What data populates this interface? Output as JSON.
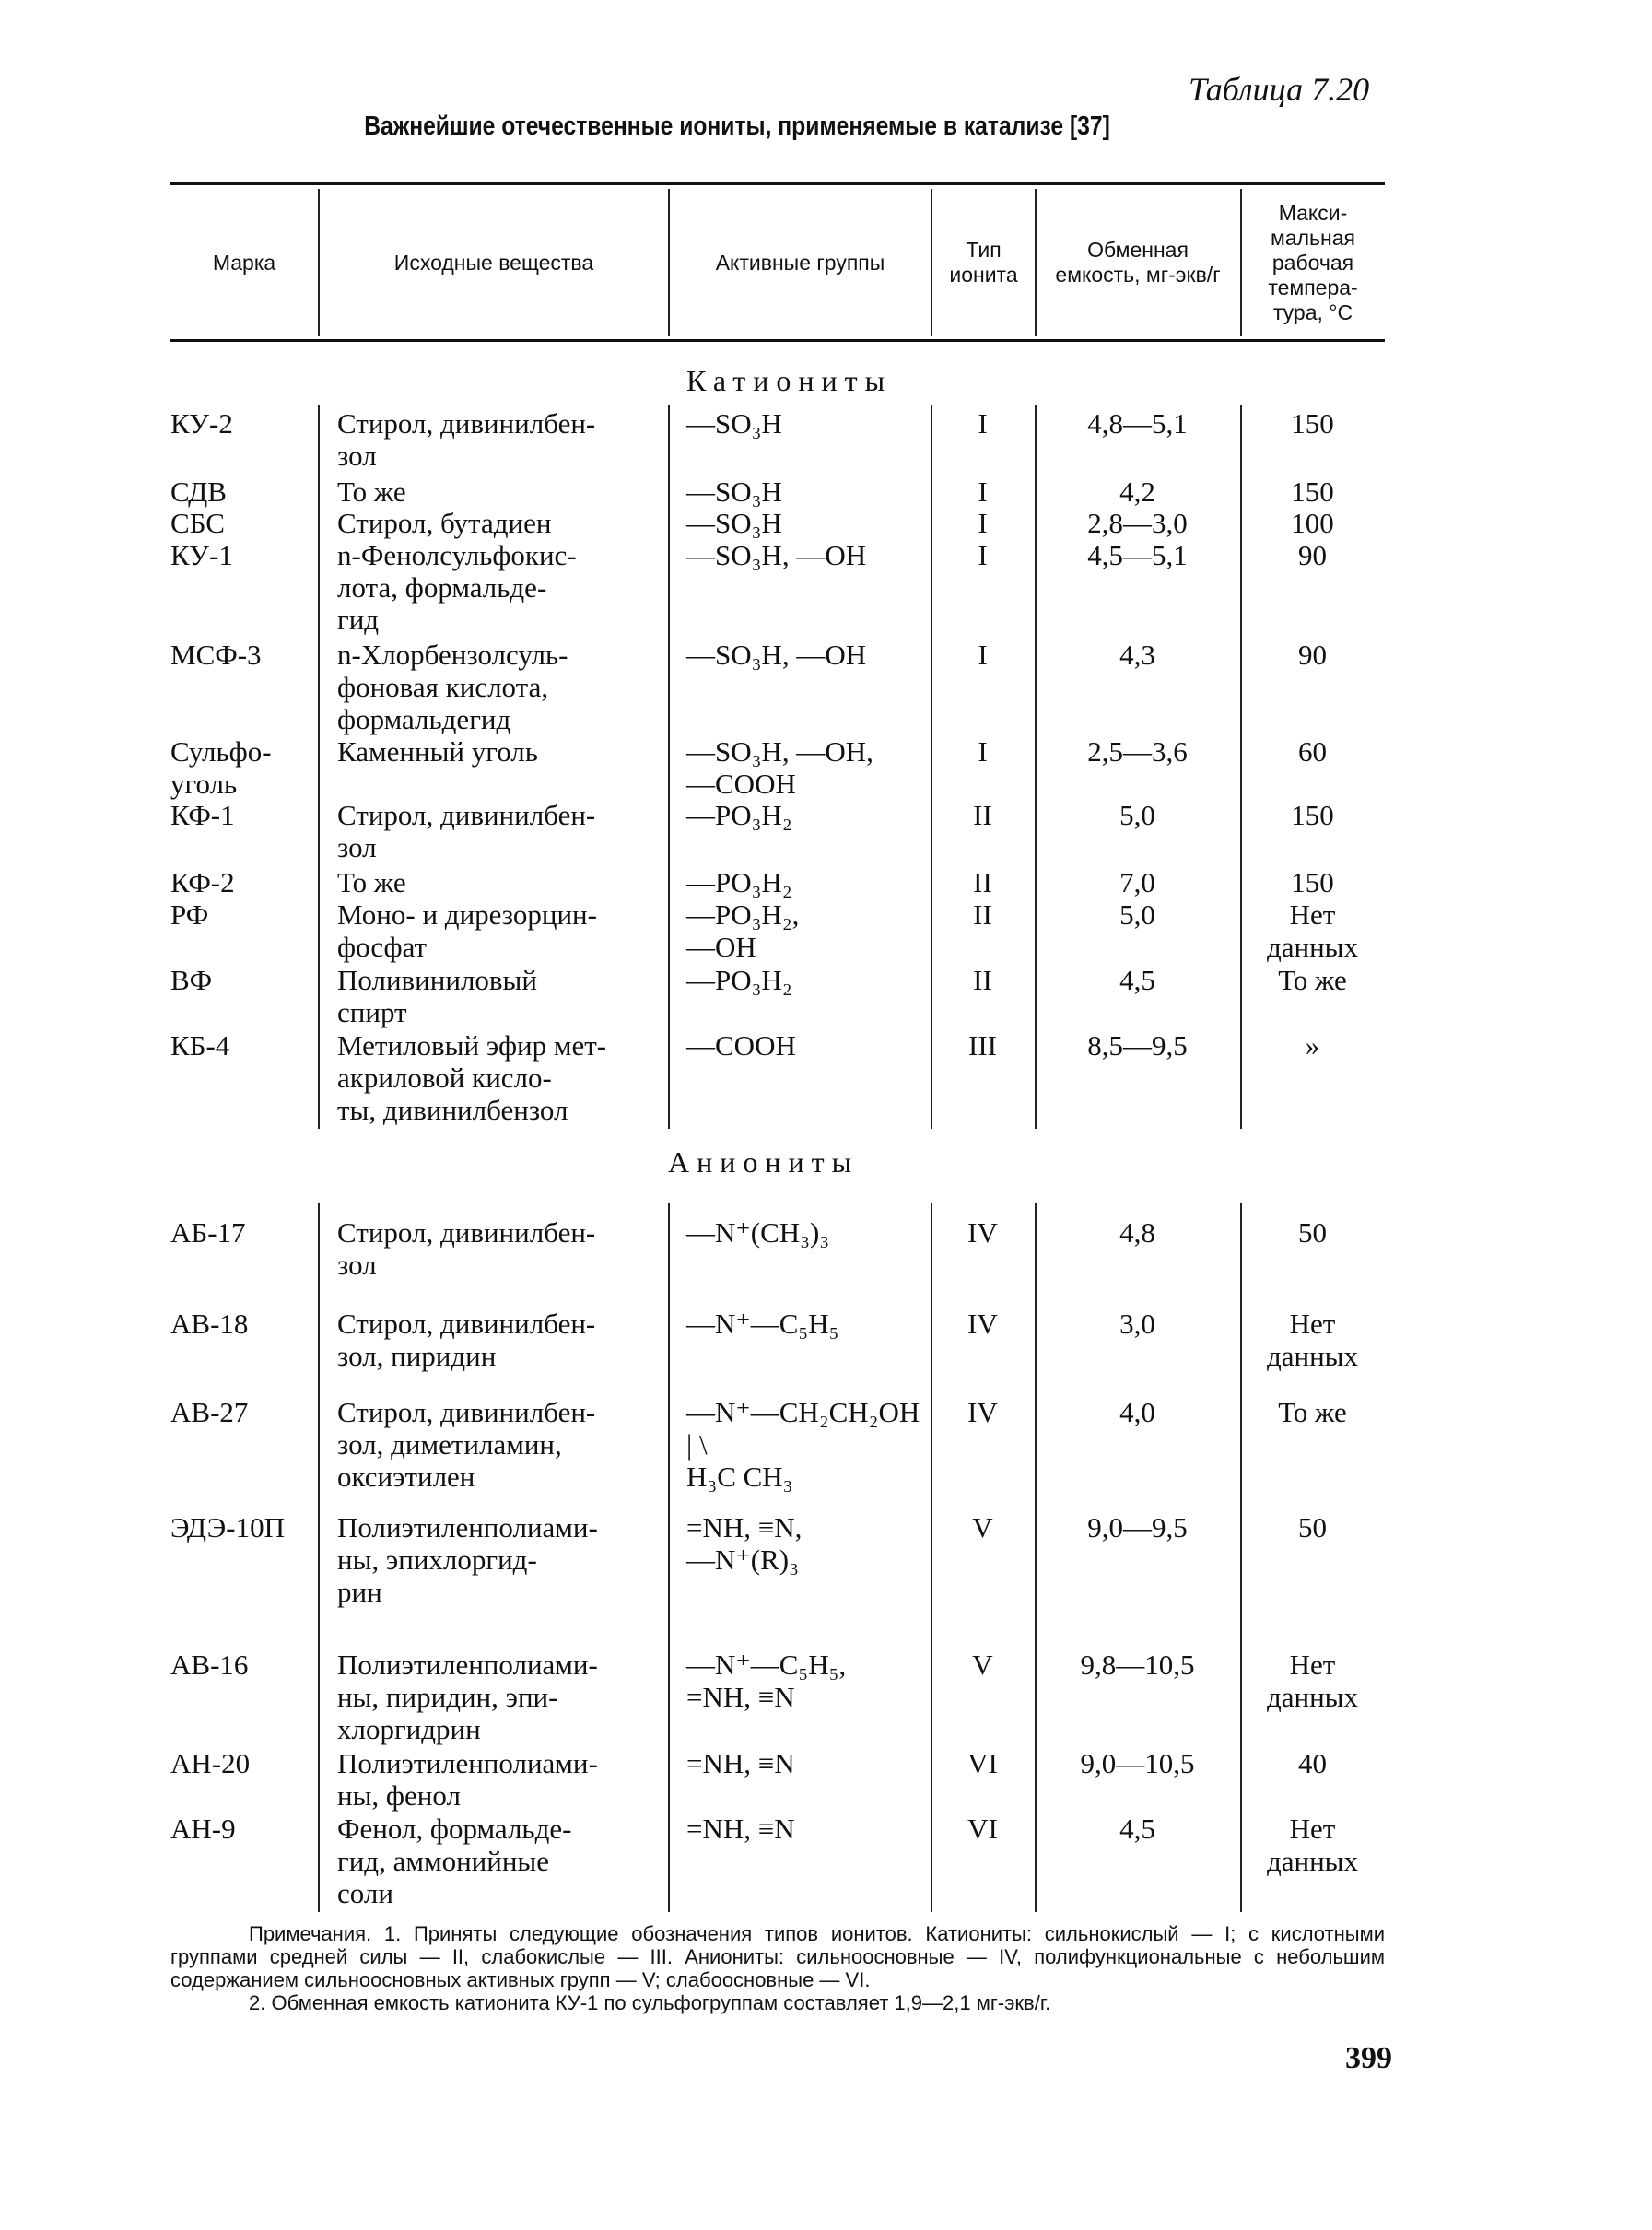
{
  "table_number": "Таблица 7.20",
  "title": "Важнейшие отечественные иониты, применяемые в катализе [37]",
  "headers": [
    "Марка",
    "Исходные вещества",
    "Активные группы",
    "Тип ионита",
    "Обменная емкость, мг-экв/г",
    "Макси-мальная рабочая темпера-тура, °С"
  ],
  "sections": [
    {
      "label": "Катиониты",
      "rows": [
        [
          "КУ-2",
          "Стирол, дивинилбен-\nзол",
          "—SO₃H",
          "I",
          "4,8—5,1",
          "150"
        ],
        [
          "СДВ",
          "То же",
          "—SO₃H",
          "I",
          "4,2",
          "150"
        ],
        [
          "СБС",
          "Стирол, бутадиен",
          "—SO₃H",
          "I",
          "2,8—3,0",
          "100"
        ],
        [
          "КУ-1",
          "n-Фенолсульфокис-\nлота, формальде-\nгид",
          "—SO₃H, —OH",
          "I",
          "4,5—5,1",
          "90"
        ],
        [
          "МСФ-3",
          "n-Хлорбензолсуль-\nфоновая кислота,\nформальдегид",
          "—SO₃H, —OH",
          "I",
          "4,3",
          "90"
        ],
        [
          "Сульфо-\nуголь",
          "Каменный уголь",
          "—SO₃H, —OH,\n—COOH",
          "I",
          "2,5—3,6",
          "60"
        ],
        [
          "КФ-1",
          "Стирол, дивинилбен-\nзол",
          "—PO₃H₂",
          "II",
          "5,0",
          "150"
        ],
        [
          "КФ-2",
          "То же",
          "—PO₃H₂",
          "II",
          "7,0",
          "150"
        ],
        [
          "РФ",
          "Моно- и дирезорцин-\nфосфат",
          "—PO₃H₂,\n—OH",
          "II",
          "5,0",
          "Нет\nданных"
        ],
        [
          "ВФ",
          "Поливиниловый\nспирт",
          "—PO₃H₂",
          "II",
          "4,5",
          "То же"
        ],
        [
          "КБ-4",
          "Метиловый эфир мет-\nакриловой кисло-\nты, дивинилбензол",
          "—COOH",
          "III",
          "8,5—9,5",
          "»"
        ]
      ]
    },
    {
      "label": "Аниониты",
      "rows": [
        [
          "АБ-17",
          "Стирол, дивинилбен-\nзол",
          "—N⁺(CH₃)₃",
          "IV",
          "4,8",
          "50"
        ],
        [
          "АВ-18",
          "Стирол, дивинилбен-\nзол, пиридин",
          "—N⁺—C₅H₅",
          "IV",
          "3,0",
          "Нет\nданных"
        ],
        [
          "АВ-27",
          "Стирол, дивинилбен-\nзол, диметиламин,\nоксиэтилен",
          "—N⁺—CH₂CH₂OH\n  |  \\\nH₃C CH₃",
          "IV",
          "4,0",
          "То же"
        ],
        [
          "ЭДЭ-10П",
          "Полиэтиленполиами-\nны, эпихлоргид-\nрин",
          "=NH, ≡N,\n—N⁺(R)₃",
          "V",
          "9,0—9,5",
          "50"
        ],
        [
          "АВ-16",
          "Полиэтиленполиами-\nны, пиридин, эпи-\nхлоргидрин",
          "—N⁺—C₅H₅,\n=NH, ≡N",
          "V",
          "9,8—10,5",
          "Нет\nданных"
        ],
        [
          "АН-20",
          "Полиэтиленполиами-\nны, фенол",
          "=NH, ≡N",
          "VI",
          "9,0—10,5",
          "40"
        ],
        [
          "АН-9",
          "Фенол, формальде-\nгид, аммонийные\nсоли",
          "=NH, ≡N",
          "VI",
          "4,5",
          "Нет\nданных"
        ]
      ]
    }
  ],
  "notes": [
    "Примечания. 1. Приняты следующие обозначения типов ионитов. Катиониты: сильнокислый — I; с кислотными группами средней силы — II, слабокислые — III. Аниониты: сильноосновные — IV, полифункциональные с небольшим содержанием сильноосновных активных групп — V; слабоосновные — VI.",
    "2. Обменная емкость катионита КУ-1 по сульфогруппам составляет 1,9—2,1 мг-экв/г."
  ],
  "page_number": "399"
}
